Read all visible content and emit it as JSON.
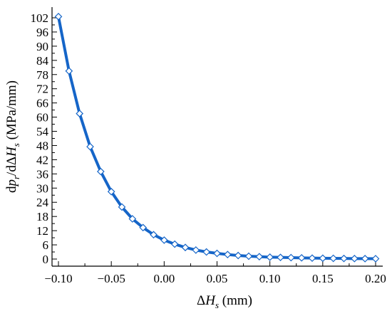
{
  "chart_data": {
    "type": "line",
    "xlabel_parts": {
      "delta": "Δ",
      "symbol": "H",
      "sub": "s",
      "units": " (mm)"
    },
    "ylabel_parts": {
      "prefix": "d",
      "p": "p",
      "p_sub": "r",
      "slash": "/dΔ",
      "H": "H",
      "H_sub": "s",
      "units": " (MPa/mm)"
    },
    "xlim": [
      -0.1,
      0.2
    ],
    "ylim": [
      0,
      102
    ],
    "x_ticks": [
      -0.1,
      -0.05,
      0.0,
      0.05,
      0.1,
      0.15,
      0.2
    ],
    "x_tick_labels": [
      "−0.10",
      "−0.05",
      "0.00",
      "0.05",
      "0.10",
      "0.15",
      "0.20"
    ],
    "y_ticks": [
      0,
      6,
      12,
      18,
      24,
      30,
      36,
      42,
      48,
      54,
      60,
      66,
      72,
      78,
      84,
      90,
      96,
      102
    ],
    "y_tick_labels": [
      "0",
      "6",
      "12",
      "18",
      "24",
      "30",
      "36",
      "42",
      "48",
      "54",
      "60",
      "66",
      "72",
      "78",
      "84",
      "90",
      "96",
      "102"
    ],
    "grid": false,
    "line_color": "#1565c8",
    "marker": "diamond-open",
    "series": [
      {
        "x": [
          -0.1,
          -0.09,
          -0.08,
          -0.07,
          -0.06,
          -0.05,
          -0.04,
          -0.03,
          -0.02,
          -0.01,
          0.0,
          0.01,
          0.02,
          0.03,
          0.04,
          0.05,
          0.06,
          0.07,
          0.08,
          0.09,
          0.1,
          0.11,
          0.12,
          0.13,
          0.14,
          0.15,
          0.16,
          0.17,
          0.18,
          0.19,
          0.2
        ],
        "values": [
          102.5,
          79.5,
          61.5,
          47.5,
          37.0,
          28.5,
          22.0,
          17.0,
          13.3,
          10.3,
          8.0,
          6.3,
          4.9,
          3.8,
          3.0,
          2.4,
          1.9,
          1.5,
          1.2,
          1.0,
          0.8,
          0.7,
          0.6,
          0.5,
          0.4,
          0.35,
          0.3,
          0.25,
          0.2,
          0.18,
          0.15
        ]
      }
    ]
  }
}
